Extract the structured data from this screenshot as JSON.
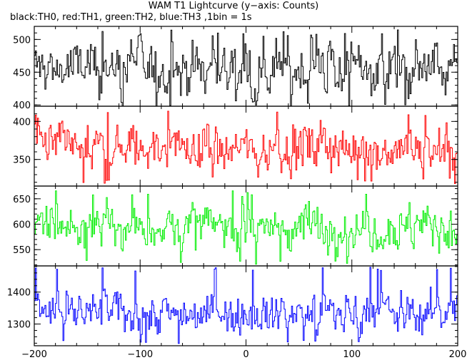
{
  "title": "WAM T1 Lightcurve (y−axis: Counts)",
  "subtitle": "black:TH0, red:TH1, green:TH2, blue:TH3 ,1bin = 1s",
  "chart_data": [
    {
      "type": "line",
      "series": [
        {
          "name": "TH0",
          "color": "#000000",
          "mean": 455,
          "amplitude": 20,
          "spike_max": 515,
          "spike_min": 398
        }
      ],
      "x": {
        "min": -200,
        "max": 200,
        "step": 1
      },
      "ylim": [
        398,
        520
      ],
      "yticks": [
        400,
        450,
        500
      ],
      "ytick_labels": [
        "400",
        "450",
        "500"
      ],
      "xlabel": "",
      "ylabel": ""
    },
    {
      "type": "line",
      "series": [
        {
          "name": "TH1",
          "color": "#ff0000",
          "mean": 365,
          "amplitude": 15,
          "spike_max": 415,
          "spike_min": 318
        }
      ],
      "x": {
        "min": -200,
        "max": 200,
        "step": 1
      },
      "ylim": [
        315,
        420
      ],
      "yticks": [
        350,
        400
      ],
      "ytick_labels": [
        "350",
        "400"
      ],
      "xlabel": "",
      "ylabel": ""
    },
    {
      "type": "line",
      "series": [
        {
          "name": "TH2",
          "color": "#00ee00",
          "mean": 595,
          "amplitude": 22,
          "spike_max": 668,
          "spike_min": 520
        }
      ],
      "x": {
        "min": -200,
        "max": 200,
        "step": 1
      },
      "ylim": [
        518,
        675
      ],
      "yticks": [
        550,
        600,
        650
      ],
      "ytick_labels": [
        "550",
        "600",
        "650"
      ],
      "xlabel": "",
      "ylabel": ""
    },
    {
      "type": "line",
      "series": [
        {
          "name": "TH3",
          "color": "#0000ff",
          "mean": 1335,
          "amplitude": 28,
          "spike_max": 1480,
          "spike_min": 1235
        }
      ],
      "x": {
        "min": -200,
        "max": 200,
        "step": 1
      },
      "ylim": [
        1232,
        1482
      ],
      "yticks": [
        1300,
        1400
      ],
      "ytick_labels": [
        "1300",
        "1400"
      ],
      "xticks": [
        -200,
        -100,
        0,
        100,
        200
      ],
      "xtick_labels": [
        "−200",
        "−100",
        "0",
        "100",
        "200"
      ],
      "xlabel": "",
      "ylabel": ""
    }
  ]
}
